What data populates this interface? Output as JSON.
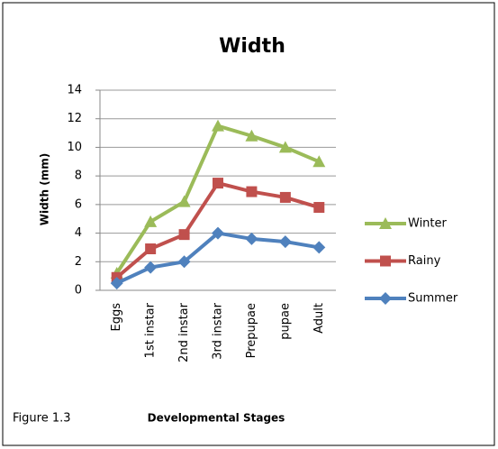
{
  "chart_data": {
    "type": "line",
    "title": "Width",
    "figure_label": "Figure 1.3",
    "xlabel": "Developmental Stages",
    "ylabel": "Width (mm)",
    "categories": [
      "Eggs",
      "1st instar",
      "2nd instar",
      "3rd instar",
      "Prepupae",
      "pupae",
      "Adult"
    ],
    "series": [
      {
        "name": "Winter",
        "color": "#9bbb59",
        "marker": "triangle",
        "values": [
          1.2,
          4.8,
          6.2,
          11.5,
          10.8,
          10.0,
          9.0
        ]
      },
      {
        "name": "Rainy",
        "color": "#c0504d",
        "marker": "square",
        "values": [
          0.9,
          2.9,
          3.9,
          7.5,
          6.9,
          6.5,
          5.8
        ]
      },
      {
        "name": "Summer",
        "color": "#4f81bd",
        "marker": "diamond",
        "values": [
          0.5,
          1.6,
          2.0,
          4.0,
          3.6,
          3.4,
          3.0
        ]
      }
    ],
    "ylim": [
      0,
      14
    ],
    "yticks": [
      0,
      2,
      4,
      6,
      8,
      10,
      12,
      14
    ],
    "grid": true,
    "legend": "right"
  }
}
